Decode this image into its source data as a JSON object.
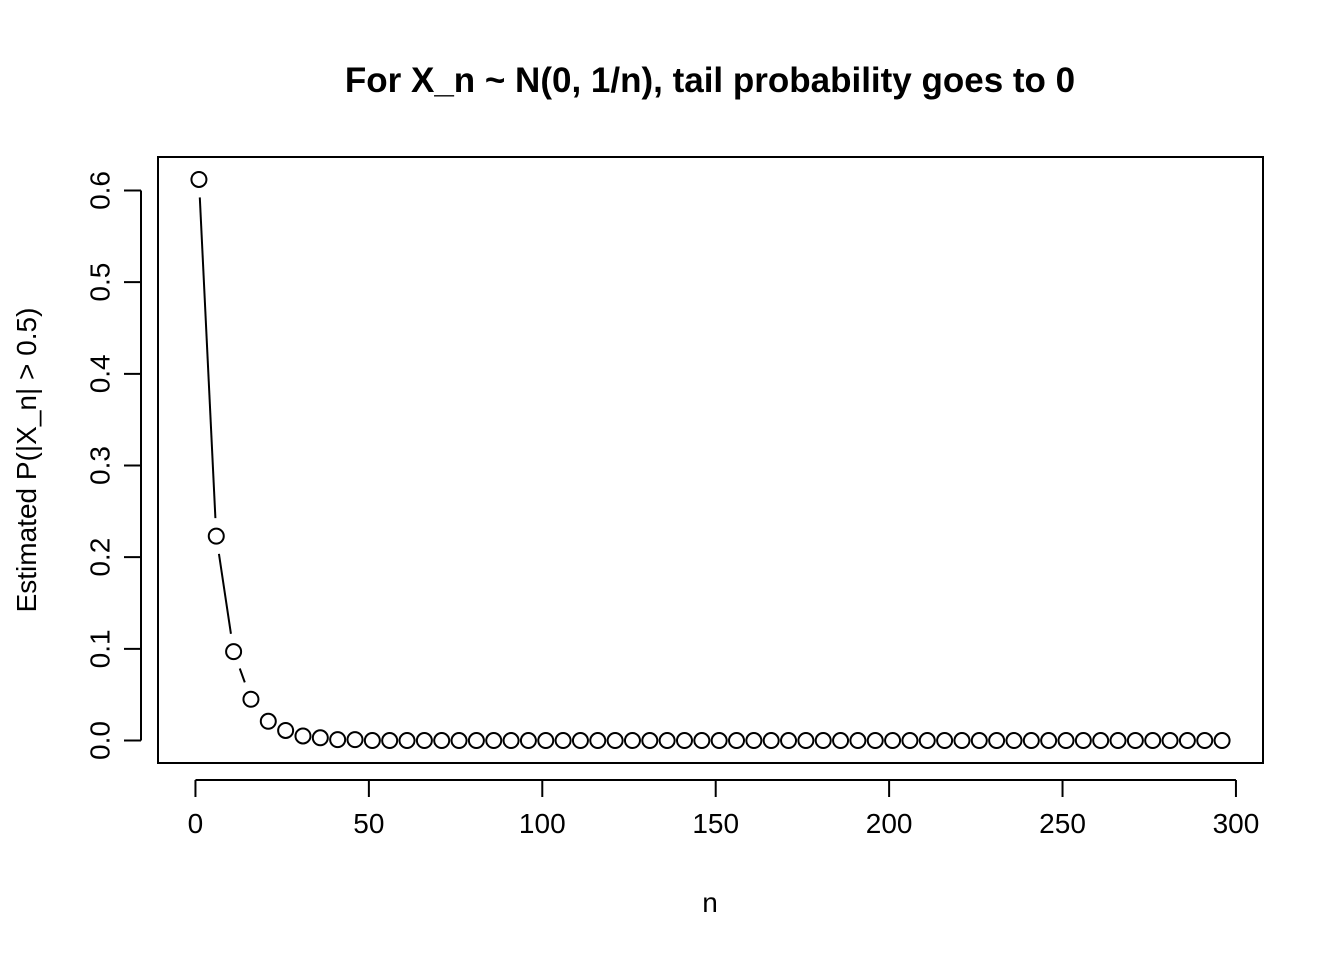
{
  "chart_data": {
    "type": "line",
    "title": "For X_n ~ N(0, 1/n), tail probability goes to 0",
    "x_label": "n",
    "y_label": "Estimated P(|X_n| > 0.5)",
    "x": [
      1,
      6,
      11,
      16,
      21,
      26,
      31,
      36,
      41,
      46,
      51,
      56,
      61,
      66,
      71,
      76,
      81,
      86,
      91,
      96,
      101,
      106,
      111,
      116,
      121,
      126,
      131,
      136,
      141,
      146,
      151,
      156,
      161,
      166,
      171,
      176,
      181,
      186,
      191,
      196,
      201,
      206,
      211,
      216,
      221,
      226,
      231,
      236,
      241,
      246,
      251,
      256,
      261,
      266,
      271,
      276,
      281,
      286,
      291,
      296
    ],
    "series": [
      {
        "name": "P(|X_n| > 0.5)",
        "color": "#000000",
        "values": [
          0.612,
          0.223,
          0.097,
          0.045,
          0.021,
          0.011,
          0.005,
          0.003,
          0.001,
          0.001,
          0,
          0,
          0,
          0,
          0,
          0,
          0,
          0,
          0,
          0,
          0,
          0,
          0,
          0,
          0,
          0,
          0,
          0,
          0,
          0,
          0,
          0,
          0,
          0,
          0,
          0,
          0,
          0,
          0,
          0,
          0,
          0,
          0,
          0,
          0,
          0,
          0,
          0,
          0,
          0,
          0,
          0,
          0,
          0,
          0,
          0,
          0,
          0,
          0,
          0
        ]
      }
    ],
    "xlim": [
      -10.8,
      307.8
    ],
    "xticks": [
      0,
      50,
      100,
      150,
      200,
      250,
      300
    ],
    "ylim": [
      -0.0245,
      0.6365
    ],
    "yticks": [
      {
        "value": 0,
        "label": "0.0"
      },
      0.1,
      0.2,
      0.3,
      0.4,
      0.5,
      0.6
    ],
    "grid": false
  }
}
